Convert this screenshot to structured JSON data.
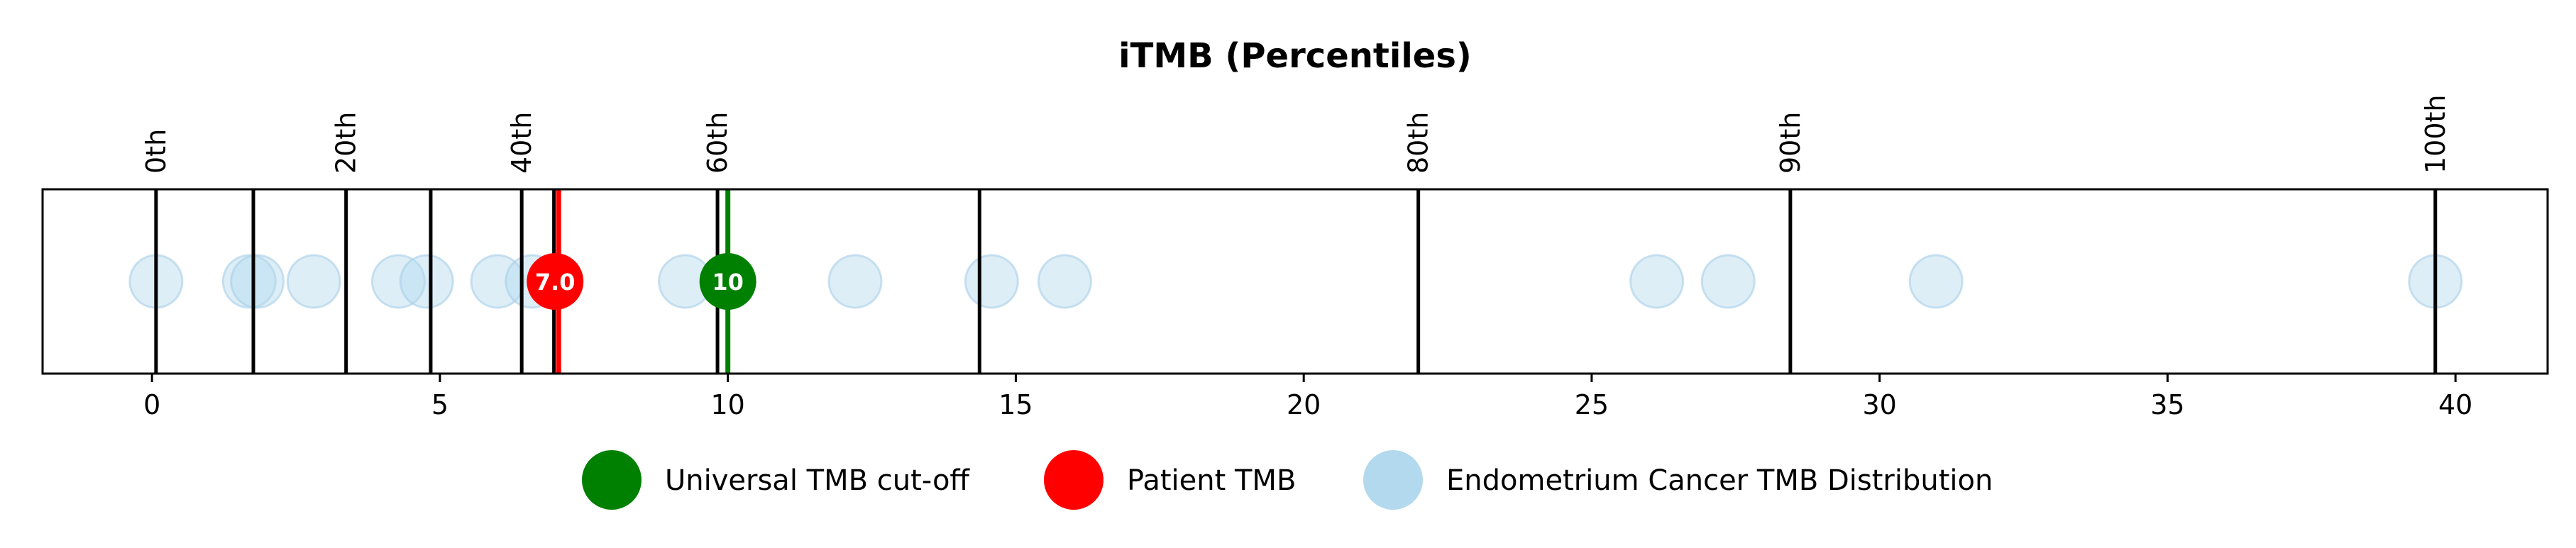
{
  "chart_data": {
    "type": "scatter",
    "title": "iTMB (Percentiles)",
    "xlabel": "",
    "ylabel": "",
    "xlim": [
      -1.9,
      41.6
    ],
    "x_ticks": [
      0,
      5,
      10,
      15,
      20,
      25,
      30,
      35,
      40
    ],
    "percentile_lines": [
      {
        "label": "0th",
        "x": 0.07
      },
      {
        "label": "",
        "x": 1.76
      },
      {
        "label": "20th",
        "x": 3.37
      },
      {
        "label": "",
        "x": 4.84
      },
      {
        "label": "40th",
        "x": 6.42
      },
      {
        "label": "",
        "x": 6.98
      },
      {
        "label": "60th",
        "x": 9.82
      },
      {
        "label": "",
        "x": 14.37
      },
      {
        "label": "80th",
        "x": 21.99
      },
      {
        "label": "90th",
        "x": 28.45
      },
      {
        "label": "100th",
        "x": 39.65
      }
    ],
    "series": [
      {
        "name": "Endometrium Cancer TMB Distribution",
        "color": "#b3d9ee",
        "values": [
          0.07,
          1.69,
          1.83,
          2.81,
          4.28,
          4.77,
          6.0,
          6.6,
          9.26,
          12.21,
          14.58,
          15.85,
          26.13,
          27.37,
          30.98,
          39.65
        ]
      }
    ],
    "patient_tmb": {
      "name": "Patient TMB",
      "value": 7.0,
      "label": "7.0",
      "color": "#ff0000"
    },
    "cutoff_tmb": {
      "name": "Universal TMB cut-off",
      "value": 10,
      "label": "10",
      "color": "#008000"
    },
    "legend": [
      {
        "label": "Universal TMB cut-off",
        "color": "#008000"
      },
      {
        "label": "Patient TMB",
        "color": "#ff0000"
      },
      {
        "label": "Endometrium Cancer TMB Distribution",
        "color": "#b3d9ee"
      }
    ],
    "legend_position": "bottom-center",
    "grid": false
  }
}
